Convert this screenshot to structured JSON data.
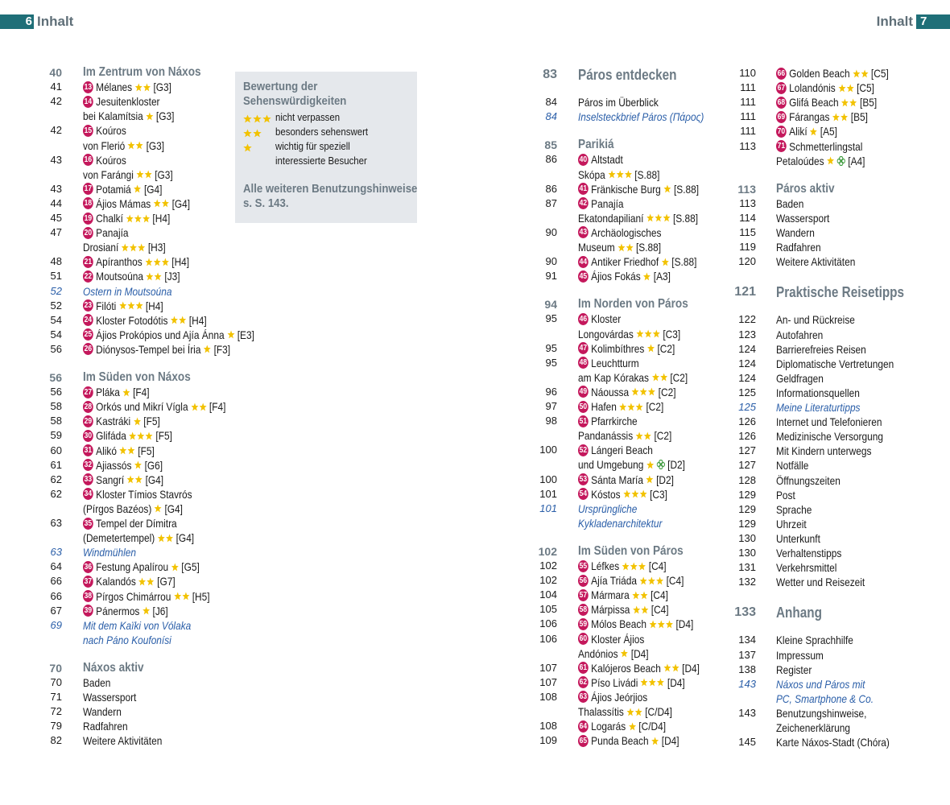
{
  "header": {
    "left_page": "6",
    "left_title": "Inhalt",
    "right_title": "Inhalt",
    "right_page": "7"
  },
  "legend": {
    "title": [
      "Bewertung der",
      "Sehenswürdigkeiten"
    ],
    "rows": [
      {
        "stars": 3,
        "lines": [
          "nicht verpassen"
        ]
      },
      {
        "stars": 2,
        "lines": [
          "besonders sehenswert"
        ]
      },
      {
        "stars": 1,
        "lines": [
          "wichtig für speziell",
          "interessierte Besucher"
        ]
      }
    ],
    "note": [
      "Alle weiteren Benutzungshinweise",
      "s. S. 143."
    ]
  },
  "columns": [
    [
      {
        "kind": "section",
        "page": "40",
        "lines": [
          "Im Zentrum von Náxos"
        ]
      },
      {
        "page": "41",
        "num": "13",
        "lines": [
          "Mélanes"
        ],
        "stars": 2,
        "ref": "[G3]"
      },
      {
        "page": "42",
        "num": "14",
        "lines": [
          "Jesuitenkloster",
          "bei Kalamítsia"
        ],
        "stars": 1,
        "ref": "[G3]"
      },
      {
        "page": "42",
        "num": "15",
        "lines": [
          "Koúros",
          "von Flerió"
        ],
        "stars": 2,
        "ref": "[G3]"
      },
      {
        "page": "43",
        "num": "16",
        "lines": [
          "Koúros",
          "von Farángi"
        ],
        "stars": 2,
        "ref": "[G3]"
      },
      {
        "page": "43",
        "num": "17",
        "lines": [
          "Potamiá"
        ],
        "stars": 1,
        "ref": "[G4]"
      },
      {
        "page": "44",
        "num": "18",
        "lines": [
          "Ájios Mámas"
        ],
        "stars": 2,
        "ref": "[G4]"
      },
      {
        "page": "45",
        "num": "19",
        "lines": [
          "Chalkí"
        ],
        "stars": 3,
        "ref": "[H4]"
      },
      {
        "page": "47",
        "num": "20",
        "lines": [
          "Panajía",
          "Drosianí"
        ],
        "stars": 3,
        "ref": "[H3]"
      },
      {
        "page": "48",
        "num": "21",
        "lines": [
          "Apíranthos"
        ],
        "stars": 3,
        "ref": "[H4]"
      },
      {
        "page": "51",
        "num": "22",
        "lines": [
          "Moutsoúna"
        ],
        "stars": 2,
        "ref": "[J3]"
      },
      {
        "kind": "tip",
        "page": "52",
        "lines": [
          "Ostern in Moutsoúna"
        ]
      },
      {
        "page": "52",
        "num": "23",
        "lines": [
          "Filóti"
        ],
        "stars": 3,
        "ref": "[H4]"
      },
      {
        "page": "54",
        "num": "24",
        "lines": [
          "Kloster Fotodótis"
        ],
        "stars": 2,
        "ref": "[H4]"
      },
      {
        "page": "54",
        "num": "25",
        "lines": [
          "Ájios Prokópios und Ajía Ánna"
        ],
        "stars": 1,
        "ref": "[E3]"
      },
      {
        "page": "56",
        "num": "26",
        "lines": [
          "Diónysos-Tempel bei Íria"
        ],
        "stars": 1,
        "ref": "[F3]"
      },
      {
        "kind": "section",
        "page": "56",
        "lines": [
          "Im Süden von Náxos"
        ]
      },
      {
        "page": "56",
        "num": "27",
        "lines": [
          "Pláka"
        ],
        "stars": 1,
        "ref": "[F4]"
      },
      {
        "page": "58",
        "num": "28",
        "lines": [
          "Orkós und Mikrí Vígla"
        ],
        "stars": 2,
        "ref": "[F4]"
      },
      {
        "page": "58",
        "num": "29",
        "lines": [
          "Kastráki"
        ],
        "stars": 1,
        "ref": "[F5]"
      },
      {
        "page": "59",
        "num": "30",
        "lines": [
          "Glifáda"
        ],
        "stars": 3,
        "ref": "[F5]"
      },
      {
        "page": "60",
        "num": "31",
        "lines": [
          "Alikó"
        ],
        "stars": 2,
        "ref": "[F5]"
      },
      {
        "page": "61",
        "num": "32",
        "lines": [
          "Ajiassós"
        ],
        "stars": 1,
        "ref": "[G6]"
      },
      {
        "page": "62",
        "num": "33",
        "lines": [
          "Sangrí"
        ],
        "stars": 2,
        "ref": "[G4]"
      },
      {
        "page": "62",
        "num": "34",
        "lines": [
          "Kloster Tímios Stavrós",
          "(Pírgos Bazéos)"
        ],
        "stars": 1,
        "ref": "[G4]"
      },
      {
        "page": "63",
        "num": "35",
        "lines": [
          "Tempel der Dímitra",
          "(Demetertempel)"
        ],
        "stars": 2,
        "ref": "[G4]"
      },
      {
        "kind": "tip",
        "page": "63",
        "lines": [
          "Windmühlen"
        ]
      },
      {
        "page": "64",
        "num": "36",
        "lines": [
          "Festung Apalírou"
        ],
        "stars": 1,
        "ref": "[G5]"
      },
      {
        "page": "66",
        "num": "37",
        "lines": [
          "Kalandós"
        ],
        "stars": 2,
        "ref": "[G7]"
      },
      {
        "page": "66",
        "num": "38",
        "lines": [
          "Pírgos Chimárrou"
        ],
        "stars": 2,
        "ref": "[H5]"
      },
      {
        "page": "67",
        "num": "39",
        "lines": [
          "Pánermos"
        ],
        "stars": 1,
        "ref": "[J6]"
      },
      {
        "kind": "tip",
        "page": "69",
        "lines": [
          "Mit dem Kaïki von Vólaka",
          "nach Páno Koufonísi"
        ]
      },
      {
        "kind": "section",
        "page": "70",
        "lines": [
          "Náxos aktiv"
        ]
      },
      {
        "page": "70",
        "lines": [
          "Baden"
        ]
      },
      {
        "page": "71",
        "lines": [
          "Wassersport"
        ]
      },
      {
        "page": "72",
        "lines": [
          "Wandern"
        ]
      },
      {
        "page": "79",
        "lines": [
          "Radfahren"
        ]
      },
      {
        "page": "82",
        "lines": [
          "Weitere Aktivitäten"
        ]
      }
    ],
    [
      {
        "kind": "major",
        "page": "83",
        "lines": [
          "Páros entdecken"
        ]
      },
      {
        "page": "84",
        "lines": [
          "Páros im Überblick"
        ]
      },
      {
        "kind": "tip",
        "page": "84",
        "lines": [
          "Inselsteckbrief Páros (Πάρος)"
        ]
      },
      {
        "kind": "section",
        "page": "85",
        "lines": [
          "Parikiá"
        ]
      },
      {
        "page": "86",
        "num": "40",
        "lines": [
          "Altstadt",
          "Skópa"
        ],
        "stars": 3,
        "ref": "[S.88]"
      },
      {
        "page": "86",
        "num": "41",
        "lines": [
          "Fränkische Burg"
        ],
        "stars": 1,
        "ref": "[S.88]"
      },
      {
        "page": "87",
        "num": "42",
        "lines": [
          "Panajía",
          "Ekatondapilianí"
        ],
        "stars": 3,
        "ref": "[S.88]"
      },
      {
        "page": "90",
        "num": "43",
        "lines": [
          "Archäologisches",
          "Museum"
        ],
        "stars": 2,
        "ref": "[S.88]"
      },
      {
        "page": "90",
        "num": "44",
        "lines": [
          "Antiker Friedhof"
        ],
        "stars": 1,
        "ref": "[S.88]"
      },
      {
        "page": "91",
        "num": "45",
        "lines": [
          "Ájios Fokás"
        ],
        "stars": 1,
        "ref": "[A3]"
      },
      {
        "kind": "section",
        "page": "94",
        "lines": [
          "Im Norden von Páros"
        ]
      },
      {
        "page": "95",
        "num": "46",
        "lines": [
          "Kloster",
          "Longovárdas"
        ],
        "stars": 3,
        "ref": "[C3]"
      },
      {
        "page": "95",
        "num": "47",
        "lines": [
          "Kolimbíthres"
        ],
        "stars": 1,
        "ref": "[C2]"
      },
      {
        "page": "95",
        "num": "48",
        "lines": [
          "Leuchtturm",
          "am Kap Kórakas"
        ],
        "stars": 2,
        "ref": "[C2]"
      },
      {
        "page": "96",
        "num": "49",
        "lines": [
          "Náoussa"
        ],
        "stars": 3,
        "ref": "[C2]"
      },
      {
        "page": "97",
        "num": "50",
        "lines": [
          "Hafen"
        ],
        "stars": 3,
        "ref": "[C2]"
      },
      {
        "page": "98",
        "num": "51",
        "lines": [
          "Pfarrkirche",
          "Pandanássis"
        ],
        "stars": 2,
        "ref": "[C2]"
      },
      {
        "page": "100",
        "num": "52",
        "lines": [
          "Lángeri Beach",
          "und Umgebung"
        ],
        "stars": 1,
        "clover": true,
        "ref": "[D2]"
      },
      {
        "page": "100",
        "num": "53",
        "lines": [
          "Sánta María"
        ],
        "stars": 1,
        "ref": "[D2]"
      },
      {
        "page": "101",
        "num": "54",
        "lines": [
          "Kóstos"
        ],
        "stars": 3,
        "ref": "[C3]"
      },
      {
        "kind": "tip",
        "page": "101",
        "lines": [
          "Ursprüngliche",
          "Kykladenarchitektur"
        ]
      },
      {
        "kind": "section",
        "page": "102",
        "lines": [
          "Im Süden von Páros"
        ]
      },
      {
        "page": "102",
        "num": "55",
        "lines": [
          "Léfkes"
        ],
        "stars": 3,
        "ref": "[C4]"
      },
      {
        "page": "102",
        "num": "56",
        "lines": [
          "Ajía Triáda"
        ],
        "stars": 3,
        "ref": "[C4]"
      },
      {
        "page": "104",
        "num": "57",
        "lines": [
          "Mármara"
        ],
        "stars": 2,
        "ref": "[C4]"
      },
      {
        "page": "105",
        "num": "58",
        "lines": [
          "Márpissa"
        ],
        "stars": 2,
        "ref": "[C4]"
      },
      {
        "page": "106",
        "num": "59",
        "lines": [
          "Mólos Beach"
        ],
        "stars": 3,
        "ref": "[D4]"
      },
      {
        "page": "106",
        "num": "60",
        "lines": [
          "Kloster Ájios",
          "Andónios"
        ],
        "stars": 1,
        "ref": "[D4]"
      },
      {
        "page": "107",
        "num": "61",
        "lines": [
          "Kalójeros Beach"
        ],
        "stars": 2,
        "ref": "[D4]"
      },
      {
        "page": "107",
        "num": "62",
        "lines": [
          "Píso Livádi"
        ],
        "stars": 3,
        "ref": "[D4]"
      },
      {
        "page": "108",
        "num": "63",
        "lines": [
          "Ájios Jeórjios",
          "Thalassítis"
        ],
        "stars": 2,
        "ref": "[C/D4]"
      },
      {
        "page": "108",
        "num": "64",
        "lines": [
          "Logarás"
        ],
        "stars": 1,
        "ref": "[C/D4]"
      },
      {
        "page": "109",
        "num": "65",
        "lines": [
          "Punda Beach"
        ],
        "stars": 1,
        "ref": "[D4]"
      }
    ],
    [
      {
        "page": "110",
        "num": "66",
        "lines": [
          "Golden Beach"
        ],
        "stars": 2,
        "ref": "[C5]"
      },
      {
        "page": "111",
        "num": "67",
        "lines": [
          "Lolandónis"
        ],
        "stars": 2,
        "ref": "[C5]"
      },
      {
        "page": "111",
        "num": "68",
        "lines": [
          "Glifá Beach"
        ],
        "stars": 2,
        "ref": "[B5]"
      },
      {
        "page": "111",
        "num": "69",
        "lines": [
          "Fárangas"
        ],
        "stars": 2,
        "ref": "[B5]"
      },
      {
        "page": "111",
        "num": "70",
        "lines": [
          "Alikí"
        ],
        "stars": 1,
        "ref": "[A5]"
      },
      {
        "page": "113",
        "num": "71",
        "lines": [
          "Schmetterlingstal",
          "Petaloúdes"
        ],
        "stars": 1,
        "clover": true,
        "ref": "[A4]"
      },
      {
        "kind": "section",
        "page": "113",
        "lines": [
          "Páros aktiv"
        ]
      },
      {
        "page": "113",
        "lines": [
          "Baden"
        ]
      },
      {
        "page": "114",
        "lines": [
          "Wassersport"
        ]
      },
      {
        "page": "115",
        "lines": [
          "Wandern"
        ]
      },
      {
        "page": "119",
        "lines": [
          "Radfahren"
        ]
      },
      {
        "page": "120",
        "lines": [
          "Weitere Aktivitäten"
        ]
      },
      {
        "kind": "major",
        "page": "121",
        "lines": [
          "Praktische Reisetipps"
        ]
      },
      {
        "page": "122",
        "lines": [
          "An- und Rückreise"
        ]
      },
      {
        "page": "123",
        "lines": [
          "Autofahren"
        ]
      },
      {
        "page": "124",
        "lines": [
          "Barrierefreies Reisen"
        ]
      },
      {
        "page": "124",
        "lines": [
          "Diplomatische Vertretungen"
        ]
      },
      {
        "page": "124",
        "lines": [
          "Geldfragen"
        ]
      },
      {
        "page": "125",
        "lines": [
          "Informationsquellen"
        ]
      },
      {
        "kind": "tip",
        "page": "125",
        "lines": [
          "Meine Literaturtipps"
        ]
      },
      {
        "page": "126",
        "lines": [
          "Internet und Telefonieren"
        ]
      },
      {
        "page": "126",
        "lines": [
          "Medizinische Versorgung"
        ]
      },
      {
        "page": "127",
        "lines": [
          "Mit Kindern unterwegs"
        ]
      },
      {
        "page": "127",
        "lines": [
          "Notfälle"
        ]
      },
      {
        "page": "128",
        "lines": [
          "Öffnungszeiten"
        ]
      },
      {
        "page": "129",
        "lines": [
          "Post"
        ]
      },
      {
        "page": "129",
        "lines": [
          "Sprache"
        ]
      },
      {
        "page": "129",
        "lines": [
          "Uhrzeit"
        ]
      },
      {
        "page": "130",
        "lines": [
          "Unterkunft"
        ]
      },
      {
        "page": "130",
        "lines": [
          "Verhaltenstipps"
        ]
      },
      {
        "page": "131",
        "lines": [
          "Verkehrsmittel"
        ]
      },
      {
        "page": "132",
        "lines": [
          "Wetter und Reisezeit"
        ]
      },
      {
        "kind": "major",
        "page": "133",
        "lines": [
          "Anhang"
        ]
      },
      {
        "page": "134",
        "lines": [
          "Kleine Sprachhilfe"
        ]
      },
      {
        "page": "137",
        "lines": [
          "Impressum"
        ]
      },
      {
        "page": "138",
        "lines": [
          "Register"
        ]
      },
      {
        "kind": "tip",
        "page": "143",
        "lines": [
          "Náxos und Páros mit",
          "PC, Smartphone & Co."
        ]
      },
      {
        "page": "143",
        "lines": [
          "Benutzungshinweise,",
          "Zeichenerklärung"
        ]
      },
      {
        "page": "145",
        "lines": [
          "Karte Náxos-Stadt (Chóra)"
        ]
      }
    ]
  ]
}
